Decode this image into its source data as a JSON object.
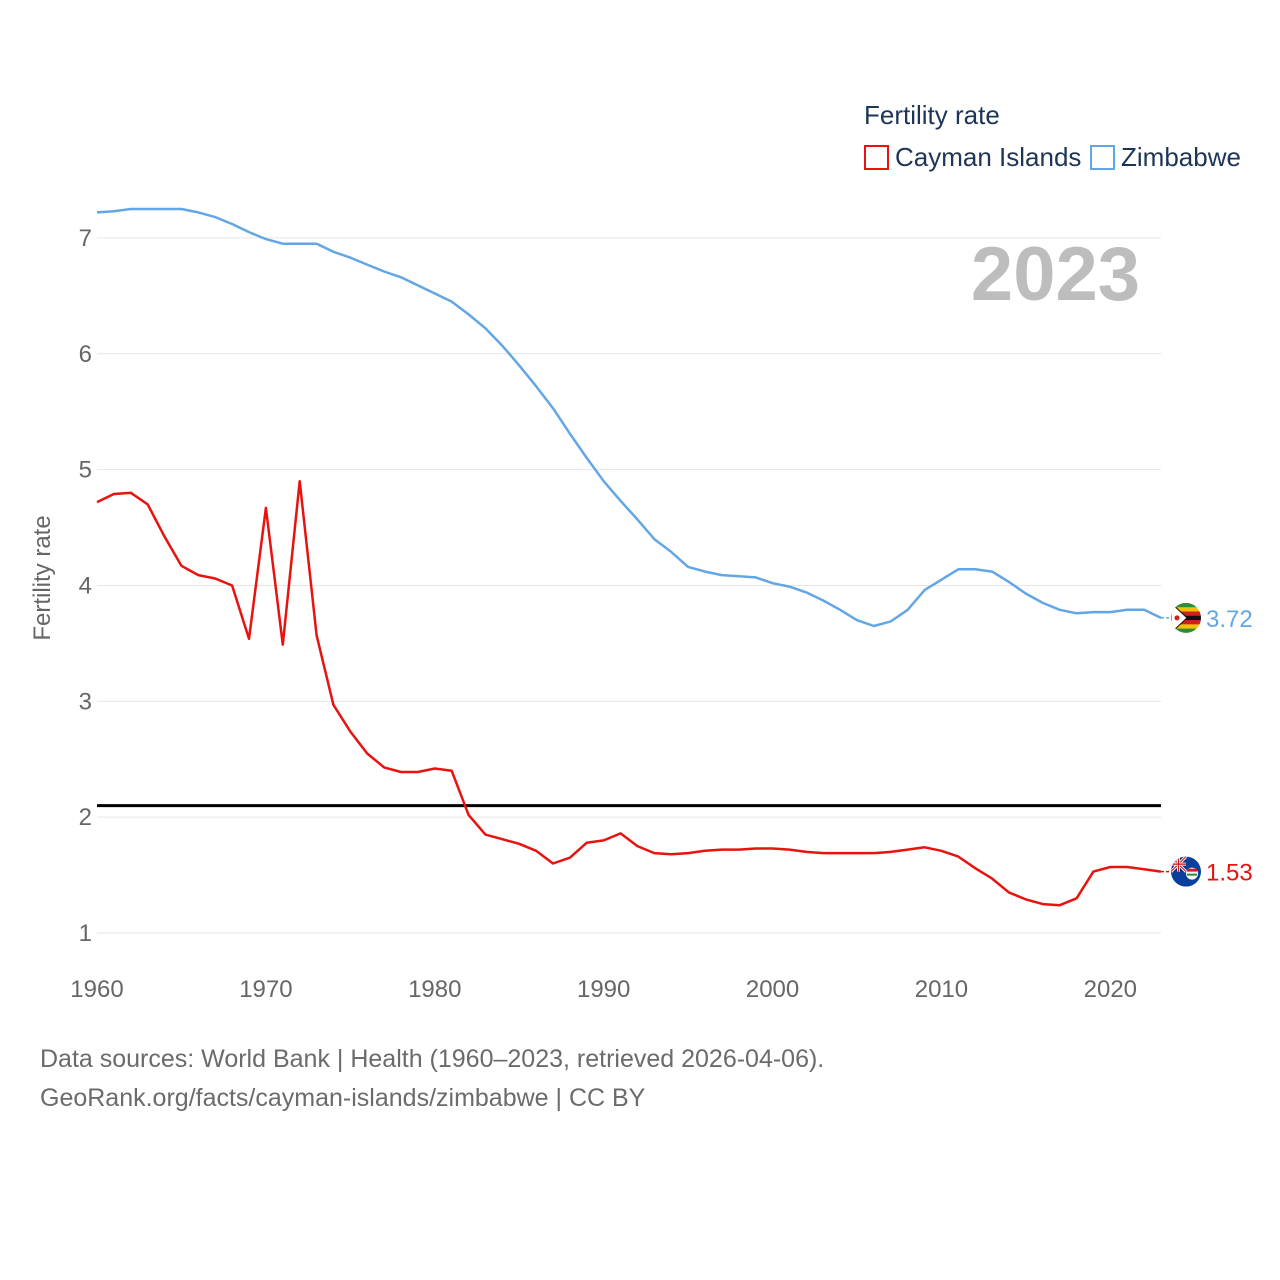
{
  "chart_data": {
    "type": "line",
    "title": "Fertility rate",
    "year_label": "2023",
    "ylabel": "Fertility rate",
    "xlabel": "",
    "xlim": [
      1960,
      2023
    ],
    "ylim": [
      0.75,
      7.5
    ],
    "x_ticks": [
      "1960",
      "1970",
      "1980",
      "1990",
      "2000",
      "2010",
      "2020"
    ],
    "y_ticks": [
      "1",
      "2",
      "3",
      "4",
      "5",
      "6",
      "7"
    ],
    "reference_line": 2.1,
    "x": [
      1960,
      1961,
      1962,
      1963,
      1964,
      1965,
      1966,
      1967,
      1968,
      1969,
      1970,
      1971,
      1972,
      1973,
      1974,
      1975,
      1976,
      1977,
      1978,
      1979,
      1980,
      1981,
      1982,
      1983,
      1984,
      1985,
      1986,
      1987,
      1988,
      1989,
      1990,
      1991,
      1992,
      1993,
      1994,
      1995,
      1996,
      1997,
      1998,
      1999,
      2000,
      2001,
      2002,
      2003,
      2004,
      2005,
      2006,
      2007,
      2008,
      2009,
      2010,
      2011,
      2012,
      2013,
      2014,
      2015,
      2016,
      2017,
      2018,
      2019,
      2020,
      2021,
      2022,
      2023
    ],
    "series": [
      {
        "name": "Cayman Islands",
        "color": "#e8130f",
        "end_label": "1.53",
        "flag": "cayman-islands-flag-icon",
        "values": [
          4.72,
          4.79,
          4.8,
          4.7,
          4.42,
          4.17,
          4.09,
          4.06,
          4.0,
          3.54,
          4.67,
          3.49,
          4.9,
          3.57,
          2.97,
          2.74,
          2.55,
          2.43,
          2.39,
          2.39,
          2.42,
          2.4,
          2.02,
          1.85,
          1.81,
          1.77,
          1.71,
          1.6,
          1.65,
          1.78,
          1.8,
          1.86,
          1.75,
          1.69,
          1.68,
          1.69,
          1.71,
          1.72,
          1.72,
          1.73,
          1.73,
          1.72,
          1.7,
          1.69,
          1.69,
          1.69,
          1.69,
          1.7,
          1.72,
          1.74,
          1.71,
          1.66,
          1.56,
          1.47,
          1.35,
          1.29,
          1.25,
          1.24,
          1.3,
          1.53,
          1.57,
          1.57,
          1.55,
          1.53
        ]
      },
      {
        "name": "Zimbabwe",
        "color": "#63a6e6",
        "end_label": "3.72",
        "flag": "zimbabwe-flag-icon",
        "values": [
          7.22,
          7.23,
          7.25,
          7.25,
          7.25,
          7.25,
          7.22,
          7.18,
          7.12,
          7.05,
          6.99,
          6.95,
          6.95,
          6.95,
          6.88,
          6.83,
          6.77,
          6.71,
          6.66,
          6.59,
          6.52,
          6.45,
          6.34,
          6.22,
          6.07,
          5.9,
          5.72,
          5.53,
          5.31,
          5.1,
          4.9,
          4.73,
          4.57,
          4.4,
          4.29,
          4.16,
          4.12,
          4.09,
          4.08,
          4.07,
          4.02,
          3.99,
          3.94,
          3.87,
          3.79,
          3.7,
          3.65,
          3.69,
          3.79,
          3.96,
          4.05,
          4.14,
          4.14,
          4.12,
          4.03,
          3.93,
          3.85,
          3.79,
          3.76,
          3.77,
          3.77,
          3.79,
          3.79,
          3.72
        ]
      }
    ],
    "legend": {
      "title": "Fertility rate",
      "position": "top-right"
    }
  },
  "source": {
    "line1": "Data sources: World Bank | Health (1960–2023, retrieved 2026-04-06).",
    "line2": "GeoRank.org/facts/cayman-islands/zimbabwe | CC BY"
  }
}
